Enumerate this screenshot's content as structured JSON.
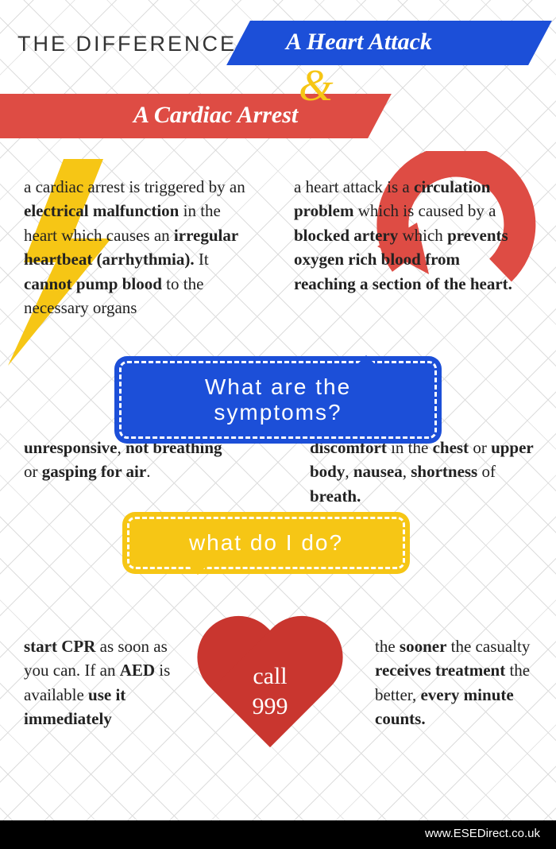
{
  "colors": {
    "blue": "#1c4fd8",
    "red": "#de4c44",
    "yellow": "#f6c615",
    "heart": "#c9362f",
    "footer_bg": "#000000",
    "text": "#222222"
  },
  "header": {
    "title_left": "THE DIFFERENCE BETWEEN",
    "banner_blue": "A Heart Attack",
    "ampersand": "&",
    "banner_red": "A Cardiac Arrest"
  },
  "descriptions": {
    "cardiac_arrest_html": "a cardiac arrest is triggered by an <b>electrical malfunction</b> in the heart which causes an <b>irregular heartbeat (arrhythmia).</b> It <b>cannot pump blood</b> to the necessary organs",
    "heart_attack_html": "a heart attack is a <b>circulation problem</b> which is caused by a <b>blocked artery</b> which <b>prevents oxygen rich blood from reaching a section of the heart.</b>"
  },
  "bubbles": {
    "symptoms": "What are the symptoms?",
    "what_do": "what do I do?"
  },
  "symptoms": {
    "left_html": "<b>unresponsive</b>, <b>not breathing</b> or <b>gasping for air</b>.",
    "right_html": "<b>discomfort</b> in the <b>chest</b> or <b>upper body</b>, <b>nausea</b>, <b>shortness</b> of <b>breath.</b>"
  },
  "actions": {
    "left_html": "<b>start CPR</b> as soon as you can. If an <b>AED</b> is available <b>use it immediately</b>",
    "right_html": "the <b>sooner</b> the casualty <b>receives treatment</b> the better, <b>every minute counts.</b>"
  },
  "heart": {
    "line1": "call",
    "line2": "999"
  },
  "footer": {
    "url": "www.ESEDirect.co.uk"
  },
  "icons": {
    "bolt_color": "#f6c615",
    "arrow_color": "#de4c44"
  }
}
